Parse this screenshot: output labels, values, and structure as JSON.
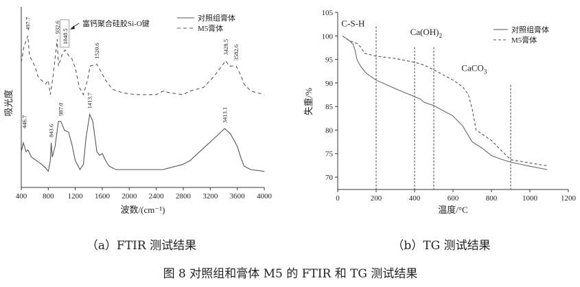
{
  "chart_data": [
    {
      "type": "line",
      "xlabel": "波数/(cm⁻¹)",
      "ylabel": "吸光度",
      "xlim": [
        400,
        4000
      ],
      "xticks": [
        400,
        800,
        1200,
        1600,
        2000,
        2400,
        2800,
        3200,
        3600,
        4000
      ],
      "ylim": [
        0,
        1
      ],
      "y_unit": "arbitrary",
      "grid": false,
      "legend_position": "top-right",
      "series": [
        {
          "name": "对照组膏体",
          "style": "solid",
          "color": "#555555",
          "x": [
            400,
            430,
            470,
            500,
            550,
            700,
            760,
            800,
            830,
            843.6,
            860,
            900,
            950,
            987,
            1040,
            1100,
            1150,
            1200,
            1270,
            1320,
            1360,
            1413.7,
            1460,
            1520,
            1560,
            1600,
            1650,
            1700,
            1800,
            2000,
            2400,
            2500,
            2800,
            2900,
            3100,
            3300,
            3413.1,
            3500,
            3600,
            3650,
            3700,
            3800,
            4000
          ],
          "y": [
            0.2,
            0.25,
            0.2,
            0.21,
            0.17,
            0.13,
            0.11,
            0.09,
            0.15,
            0.25,
            0.17,
            0.23,
            0.37,
            0.37,
            0.32,
            0.31,
            0.24,
            0.15,
            0.1,
            0.13,
            0.28,
            0.41,
            0.37,
            0.2,
            0.18,
            0.19,
            0.15,
            0.12,
            0.1,
            0.1,
            0.1,
            0.1,
            0.13,
            0.15,
            0.22,
            0.29,
            0.33,
            0.3,
            0.23,
            0.17,
            0.12,
            0.1,
            0.09
          ]
        },
        {
          "name": "M5膏体",
          "style": "dashed",
          "color": "#555555",
          "x": [
            400,
            440,
            497.7,
            520,
            600,
            650,
            700,
            760,
            800,
            830,
            870,
            932.6,
            950,
            1000,
            1048.5,
            1100,
            1150,
            1200,
            1260,
            1320,
            1380,
            1420,
            1520.6,
            1580,
            1650,
            1750,
            1900,
            2100,
            2400,
            2500,
            2600,
            2800,
            2900,
            3100,
            3250,
            3350,
            3428.5,
            3480,
            3582.6,
            3650,
            3700,
            3800,
            4000
          ],
          "y": [
            0.7,
            0.79,
            0.85,
            0.74,
            0.68,
            0.62,
            0.6,
            0.58,
            0.6,
            0.52,
            0.62,
            0.83,
            0.68,
            0.74,
            0.77,
            0.74,
            0.72,
            0.67,
            0.56,
            0.52,
            0.6,
            0.68,
            0.69,
            0.65,
            0.6,
            0.55,
            0.53,
            0.52,
            0.52,
            0.54,
            0.53,
            0.52,
            0.54,
            0.56,
            0.62,
            0.67,
            0.71,
            0.68,
            0.68,
            0.63,
            0.58,
            0.54,
            0.52
          ]
        }
      ],
      "peak_labels": [
        {
          "series": "M5膏体",
          "x": 497.7,
          "label": "497.7"
        },
        {
          "series": "M5膏体",
          "x": 932.6,
          "label": "932.6"
        },
        {
          "series": "M5膏体",
          "x": 1048.5,
          "label": "1048.5",
          "boxed": true
        },
        {
          "series": "M5膏体",
          "x": 1520.6,
          "label": "1520.6"
        },
        {
          "series": "M5膏体",
          "x": 3428.5,
          "label": "3428.5"
        },
        {
          "series": "M5膏体",
          "x": 3582.6,
          "label": "3582.6"
        },
        {
          "series": "对照组膏体",
          "x": 446.7,
          "label": "446.7"
        },
        {
          "series": "对照组膏体",
          "x": 843.6,
          "label": "843.6"
        },
        {
          "series": "对照组膏体",
          "x": 987.0,
          "label": "987.0"
        },
        {
          "series": "对照组膏体",
          "x": 1413.7,
          "label": "1413.7"
        },
        {
          "series": "对照组膏体",
          "x": 3413.1,
          "label": "3413.1"
        }
      ],
      "annotation": "富钙聚合硅胶Si-O键",
      "caption": "（a）FTIR 测试结果"
    },
    {
      "type": "line",
      "xlabel": "温度/°C",
      "ylabel": "失重/%",
      "xlim": [
        0,
        1200
      ],
      "ylim": [
        67.5,
        105
      ],
      "xticks": [
        0,
        200,
        400,
        600,
        800,
        1000,
        1200
      ],
      "yticks": [
        70,
        75,
        80,
        85,
        90,
        95,
        100,
        105
      ],
      "grid": false,
      "legend_position": "top-right",
      "series": [
        {
          "name": "对照组膏体",
          "style": "solid",
          "color": "#666666",
          "x": [
            25,
            60,
            80,
            90,
            100,
            120,
            150,
            200,
            300,
            400,
            430,
            450,
            500,
            600,
            650,
            700,
            750,
            800,
            850,
            900,
            1000,
            1090
          ],
          "y": [
            100,
            99,
            98.2,
            97,
            95,
            93.5,
            92,
            90.6,
            88.8,
            87.1,
            86.6,
            85.9,
            85.2,
            83,
            80.9,
            77.5,
            76.2,
            74.6,
            73.8,
            73.2,
            72.3,
            71.6
          ]
        },
        {
          "name": "M5膏体",
          "style": "dashed",
          "color": "#555555",
          "x": [
            25,
            60,
            100,
            120,
            140,
            200,
            300,
            400,
            450,
            500,
            600,
            650,
            680,
            700,
            720,
            800,
            850,
            900,
            1000,
            1090
          ],
          "y": [
            100,
            99,
            98.4,
            97.6,
            96.3,
            95.7,
            95.2,
            94.4,
            93.8,
            92.8,
            90.6,
            89.2,
            87.5,
            84.5,
            80,
            77.8,
            75.7,
            73.7,
            73,
            72.4
          ]
        }
      ],
      "reference_lines": [
        {
          "x": 200,
          "top": 102
        },
        {
          "x": 400,
          "top": 97.6
        },
        {
          "x": 500,
          "top": 97.6
        },
        {
          "x": 900,
          "top": 89.6
        }
      ],
      "region_labels": [
        {
          "text": "C-S-H",
          "x": 80,
          "y": 102
        },
        {
          "text": "Ca(OH)",
          "sub": "2",
          "x": 460,
          "y": 100.2
        },
        {
          "text": "CaCO",
          "sub": "3",
          "x": 710,
          "y": 92.5
        }
      ],
      "caption": "（b）TG 测试结果"
    }
  ],
  "figure_caption": "图 8  对照组和膏体 M5 的 FTIR 和 TG 测试结果"
}
